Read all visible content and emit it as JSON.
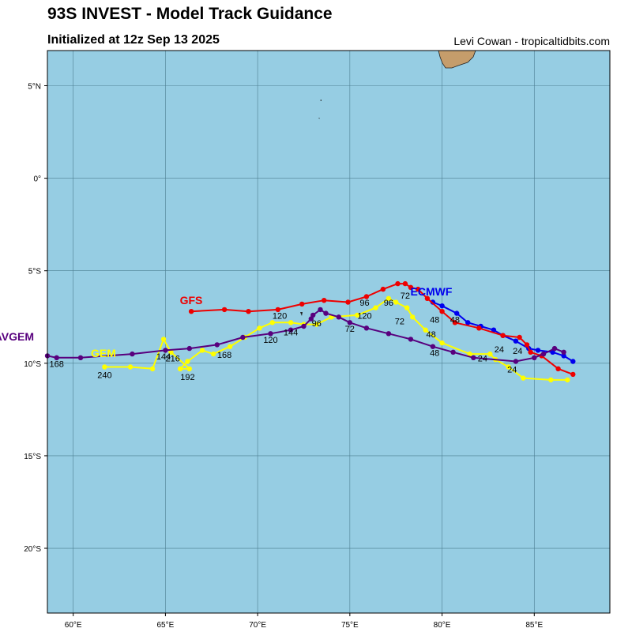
{
  "header": {
    "title": "93S INVEST - Model Track Guidance",
    "subtitle": "Initialized at 12z Sep 13 2025",
    "credit": "Levi Cowan - tropicaltidbits.com"
  },
  "colors": {
    "ocean": "#96cde3",
    "land": "#c59d6b",
    "grid": "#4d7f92",
    "GFS": "#ee0000",
    "ECMWF": "#0000ee",
    "GEM": "#ffff00",
    "AVGEM": "#58007e"
  },
  "map": {
    "lon_range": [
      58.6,
      89.1
    ],
    "lat_range": [
      -23.5,
      6.9
    ],
    "lon_ticks": [
      {
        "value": 60,
        "label": "60°E"
      },
      {
        "value": 65,
        "label": "65°E"
      },
      {
        "value": 70,
        "label": "70°E"
      },
      {
        "value": 75,
        "label": "75°E"
      },
      {
        "value": 80,
        "label": "80°E"
      },
      {
        "value": 85,
        "label": "85°E"
      }
    ],
    "lat_ticks": [
      {
        "value": 5,
        "label": "5°N"
      },
      {
        "value": 0,
        "label": "0°"
      },
      {
        "value": -5,
        "label": "5°S"
      },
      {
        "value": -10,
        "label": "10°S"
      },
      {
        "value": -15,
        "label": "15°S"
      },
      {
        "value": -20,
        "label": "20°S"
      }
    ]
  },
  "tracks": [
    {
      "name": "GFS",
      "label": "GFS",
      "points": [
        [
          87.1,
          -10.6
        ],
        [
          86.3,
          -10.3
        ],
        [
          85.4,
          -9.6
        ],
        [
          84.8,
          -9.4
        ],
        [
          84.6,
          -9.0
        ],
        [
          84.2,
          -8.6
        ],
        [
          83.3,
          -8.5
        ],
        [
          82.0,
          -8.1
        ],
        [
          80.7,
          -7.8
        ],
        [
          80.0,
          -7.2
        ],
        [
          79.2,
          -6.5
        ],
        [
          78.7,
          -6.0
        ],
        [
          78.3,
          -5.9
        ],
        [
          78.0,
          -5.7
        ],
        [
          77.6,
          -5.7
        ],
        [
          76.8,
          -6.0
        ],
        [
          75.9,
          -6.4
        ],
        [
          74.9,
          -6.7
        ],
        [
          73.6,
          -6.6
        ],
        [
          72.4,
          -6.8
        ],
        [
          71.1,
          -7.1
        ],
        [
          69.5,
          -7.2
        ],
        [
          68.2,
          -7.1
        ],
        [
          66.4,
          -7.2
        ]
      ],
      "labels": [
        {
          "text": "72",
          "lon": 78.0,
          "lat": -6.5
        },
        {
          "text": "48",
          "lon": 80.7,
          "lat": -7.8
        },
        {
          "text": "96",
          "lon": 75.8,
          "lat": -6.9
        },
        {
          "text": "120",
          "lon": 71.2,
          "lat": -7.6
        }
      ]
    },
    {
      "name": "ECMWF",
      "label": "ECMWF",
      "points": [
        [
          87.1,
          -9.9
        ],
        [
          86.6,
          -9.6
        ],
        [
          86.0,
          -9.4
        ],
        [
          85.2,
          -9.3
        ],
        [
          84.7,
          -9.2
        ],
        [
          84.0,
          -8.8
        ],
        [
          83.3,
          -8.5
        ],
        [
          82.8,
          -8.2
        ],
        [
          82.1,
          -8.0
        ],
        [
          81.4,
          -7.8
        ],
        [
          80.8,
          -7.3
        ],
        [
          80.0,
          -6.9
        ],
        [
          79.5,
          -6.7
        ]
      ],
      "labels": [
        {
          "text": "48",
          "lon": 79.6,
          "lat": -7.8
        },
        {
          "text": "24",
          "lon": 84.1,
          "lat": -9.5
        }
      ]
    },
    {
      "name": "GEM",
      "label": "GEM",
      "points": [
        [
          86.8,
          -10.9
        ],
        [
          85.9,
          -10.9
        ],
        [
          84.4,
          -10.8
        ],
        [
          83.6,
          -10.2
        ],
        [
          82.9,
          -9.8
        ],
        [
          82.6,
          -9.5
        ],
        [
          81.5,
          -9.5
        ],
        [
          80.0,
          -8.9
        ],
        [
          79.1,
          -8.2
        ],
        [
          78.4,
          -7.5
        ],
        [
          78.1,
          -7.0
        ],
        [
          77.5,
          -6.7
        ],
        [
          77.1,
          -6.5
        ],
        [
          76.4,
          -7.0
        ],
        [
          75.4,
          -7.4
        ],
        [
          74.0,
          -7.5
        ],
        [
          73.2,
          -7.9
        ],
        [
          72.5,
          -7.9
        ],
        [
          71.8,
          -7.8
        ],
        [
          70.8,
          -7.8
        ],
        [
          70.1,
          -8.1
        ],
        [
          69.3,
          -8.6
        ],
        [
          68.5,
          -9.1
        ],
        [
          67.6,
          -9.5
        ],
        [
          67.0,
          -9.3
        ],
        [
          66.2,
          -9.9
        ],
        [
          65.8,
          -10.3
        ],
        [
          66.3,
          -10.3
        ],
        [
          65.3,
          -9.4
        ],
        [
          64.9,
          -8.7
        ],
        [
          64.3,
          -10.3
        ],
        [
          63.1,
          -10.2
        ],
        [
          61.7,
          -10.2
        ]
      ],
      "labels": [
        {
          "text": "24",
          "lon": 83.1,
          "lat": -9.4
        },
        {
          "text": "24",
          "lon": 83.8,
          "lat": -10.5
        },
        {
          "text": "48",
          "lon": 79.4,
          "lat": -8.6
        },
        {
          "text": "72",
          "lon": 77.7,
          "lat": -7.9
        },
        {
          "text": "96",
          "lon": 77.1,
          "lat": -6.9
        },
        {
          "text": "120",
          "lon": 75.8,
          "lat": -7.6
        },
        {
          "text": "168",
          "lon": 68.2,
          "lat": -9.7
        },
        {
          "text": "192",
          "lon": 66.2,
          "lat": -10.9
        },
        {
          "text": "216",
          "lon": 65.4,
          "lat": -9.9
        },
        {
          "text": "240",
          "lon": 61.7,
          "lat": -10.8
        }
      ]
    },
    {
      "name": "AVGEM",
      "label": "AVGEM",
      "points": [
        [
          86.6,
          -9.4
        ],
        [
          86.1,
          -9.2
        ],
        [
          85.5,
          -9.5
        ],
        [
          85.0,
          -9.7
        ],
        [
          84.0,
          -9.9
        ],
        [
          81.7,
          -9.7
        ],
        [
          80.6,
          -9.4
        ],
        [
          79.5,
          -9.1
        ],
        [
          78.3,
          -8.7
        ],
        [
          77.1,
          -8.4
        ],
        [
          75.9,
          -8.1
        ],
        [
          75.0,
          -7.8
        ],
        [
          74.4,
          -7.5
        ],
        [
          73.7,
          -7.3
        ],
        [
          73.4,
          -7.1
        ],
        [
          73.0,
          -7.4
        ],
        [
          72.9,
          -7.6
        ],
        [
          72.5,
          -8.0
        ],
        [
          71.8,
          -8.2
        ],
        [
          70.7,
          -8.4
        ],
        [
          69.2,
          -8.6
        ],
        [
          67.8,
          -9.0
        ],
        [
          66.3,
          -9.2
        ],
        [
          65.0,
          -9.3
        ],
        [
          63.2,
          -9.5
        ],
        [
          60.4,
          -9.7
        ],
        [
          59.1,
          -9.7
        ],
        [
          58.6,
          -9.6
        ]
      ],
      "labels": [
        {
          "text": "24",
          "lon": 82.2,
          "lat": -9.9
        },
        {
          "text": "48",
          "lon": 79.6,
          "lat": -9.6
        },
        {
          "text": "72",
          "lon": 75.0,
          "lat": -8.3
        },
        {
          "text": "96",
          "lon": 73.2,
          "lat": -8.0
        },
        {
          "text": "120",
          "lon": 70.7,
          "lat": -8.9
        },
        {
          "text": "144",
          "lon": 71.8,
          "lat": -8.5
        },
        {
          "text": "144",
          "lon": 64.9,
          "lat": -9.8
        },
        {
          "text": "168",
          "lon": 59.1,
          "lat": -10.2
        }
      ]
    }
  ]
}
